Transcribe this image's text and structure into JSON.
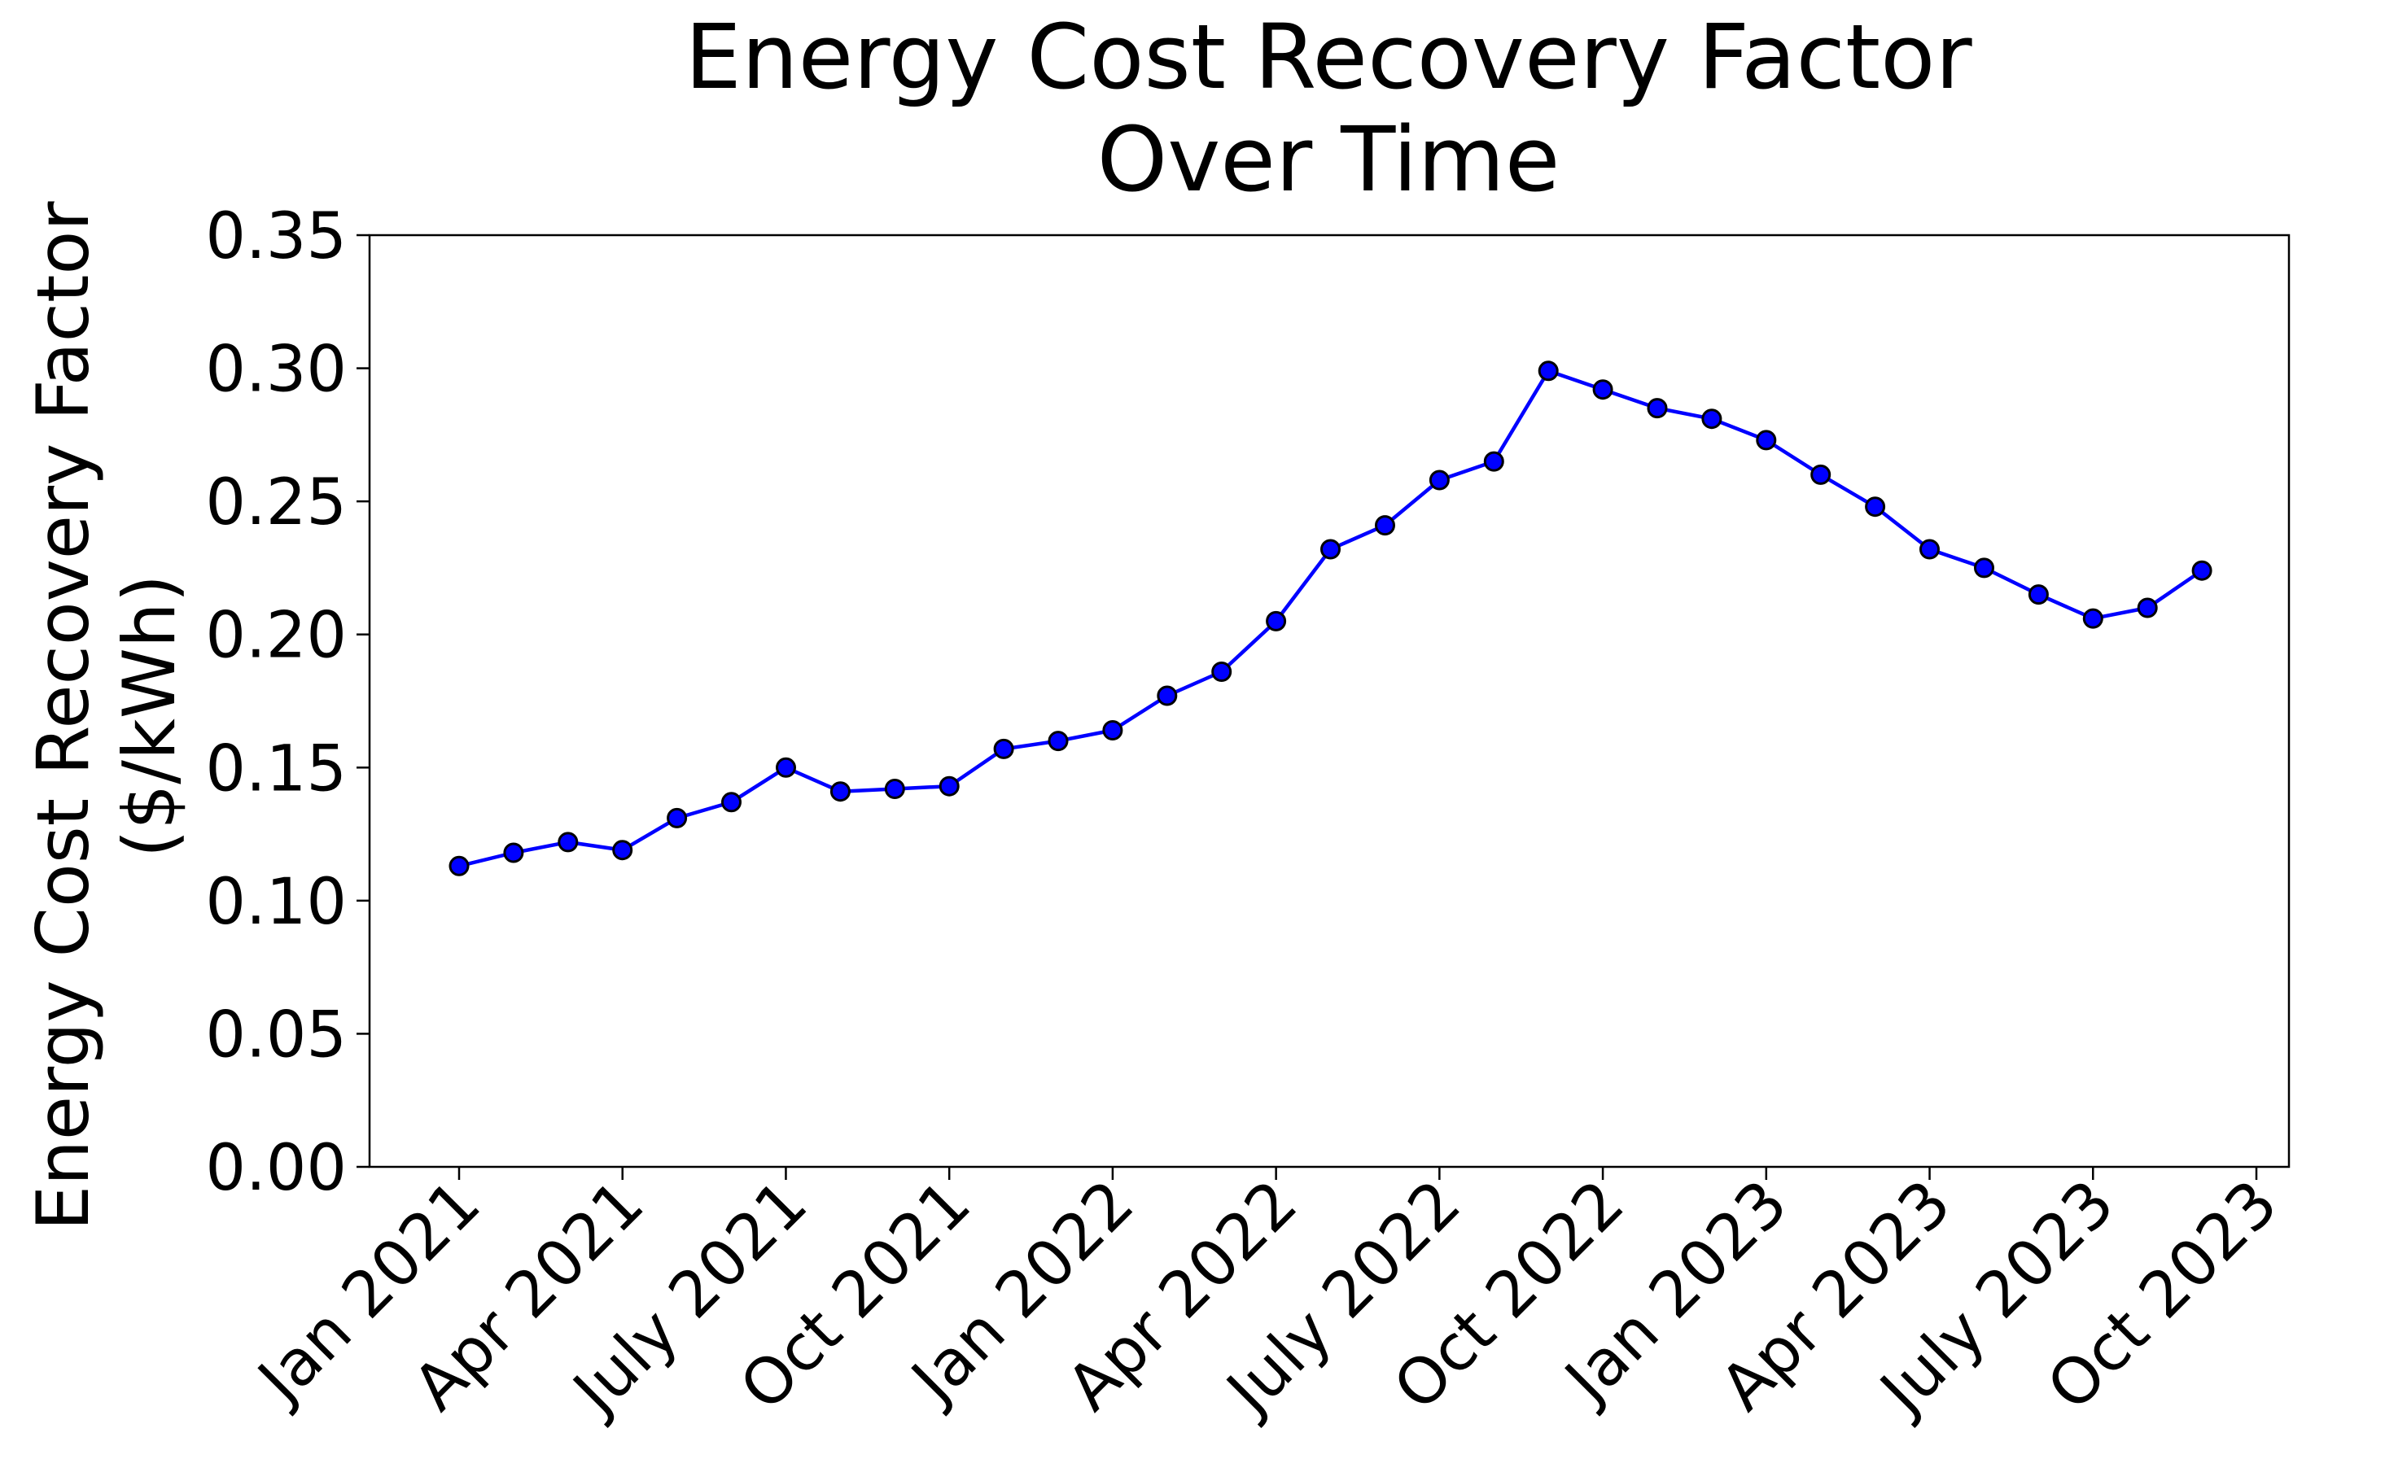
{
  "chart_data": {
    "type": "line",
    "title_lines": [
      "Energy Cost Recovery Factor",
      "Over Time"
    ],
    "ylabel_lines": [
      "Energy Cost Recovery Factor",
      "($/kWh)"
    ],
    "xlabel": "",
    "ylim": [
      0.0,
      0.35
    ],
    "y_ticks": [
      "0.00",
      "0.05",
      "0.10",
      "0.15",
      "0.20",
      "0.25",
      "0.30",
      "0.35"
    ],
    "x_ticks": [
      "Jan 2021",
      "Apr 2021",
      "July 2021",
      "Oct 2021",
      "Jan 2022",
      "Apr 2022",
      "July 2022",
      "Oct 2022",
      "Jan 2023",
      "Apr 2023",
      "July 2023",
      "Oct 2023"
    ],
    "grid": false,
    "line_color": "#0000ff",
    "marker_color": "#0000ff",
    "marker_edge": "#000000",
    "series": [
      {
        "x": [
          "2021-01",
          "2021-02",
          "2021-03",
          "2021-04",
          "2021-05",
          "2021-06",
          "2021-07",
          "2021-08",
          "2021-09",
          "2021-10",
          "2021-11",
          "2021-12",
          "2022-01",
          "2022-02",
          "2022-03",
          "2022-04",
          "2022-05",
          "2022-06",
          "2022-07",
          "2022-08",
          "2022-09",
          "2022-10",
          "2022-11",
          "2022-12",
          "2023-01",
          "2023-02",
          "2023-03",
          "2023-04",
          "2023-05",
          "2023-06",
          "2023-07",
          "2023-08",
          "2023-09"
        ],
        "values": [
          0.113,
          0.118,
          0.122,
          0.119,
          0.131,
          0.137,
          0.15,
          0.141,
          0.142,
          0.143,
          0.157,
          0.16,
          0.164,
          0.177,
          0.186,
          0.205,
          0.232,
          0.241,
          0.258,
          0.265,
          0.299,
          0.292,
          0.285,
          0.281,
          0.273,
          0.26,
          0.248,
          0.232,
          0.225,
          0.215,
          0.206,
          0.21,
          0.224
        ]
      }
    ]
  }
}
